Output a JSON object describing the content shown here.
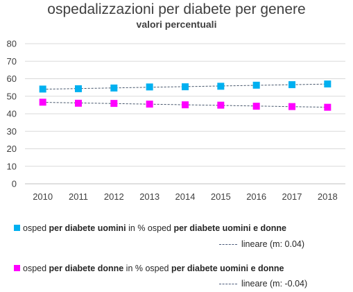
{
  "chart_data": {
    "type": "line",
    "title": "ospedalizzazioni per diabete per genere",
    "subtitle": "valori percentuali",
    "categories": [
      "2010",
      "2011",
      "2012",
      "2013",
      "2014",
      "2015",
      "2016",
      "2017",
      "2018"
    ],
    "ylim": [
      0,
      80
    ],
    "yticks": [
      "0",
      "10",
      "20",
      "30",
      "40",
      "50",
      "60",
      "70",
      "80"
    ],
    "grid": true,
    "legend_placement": "bottom",
    "series": [
      {
        "name_parts": {
          "a": "osped ",
          "b": "per diabete uomini",
          "c": " in % osped ",
          "d": "per diabete uomini e donne"
        },
        "values": [
          54.1,
          54.3,
          54.7,
          55.3,
          55.4,
          55.7,
          56.3,
          56.6,
          57.0
        ],
        "color": "#00b0f0",
        "trend_label": "lineare (m: 0.04)"
      },
      {
        "name_parts": {
          "a": "osped ",
          "b": "per diabete donne",
          "c": " in % osped ",
          "d": "per diabete uomini e donne"
        },
        "values": [
          46.6,
          46.0,
          45.9,
          45.5,
          45.1,
          44.9,
          44.3,
          44.1,
          43.7
        ],
        "color": "#ff00ff",
        "trend_label": "lineare (m: -0.04)"
      }
    ],
    "trend_color": "#44546a"
  }
}
